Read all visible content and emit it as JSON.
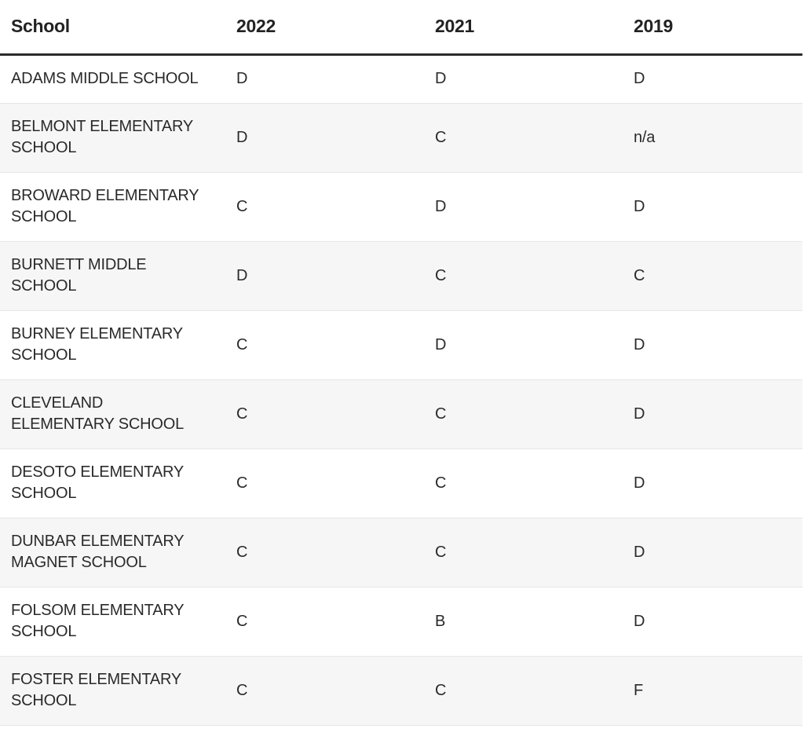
{
  "table": {
    "headers": {
      "school": "School",
      "y2022": "2022",
      "y2021": "2021",
      "y2019": "2019"
    },
    "rows": [
      {
        "school": "ADAMS MIDDLE SCHOOL",
        "y2022": "D",
        "y2021": "D",
        "y2019": "D"
      },
      {
        "school": "BELMONT ELEMENTARY SCHOOL",
        "y2022": "D",
        "y2021": "C",
        "y2019": "n/a"
      },
      {
        "school": "BROWARD ELEMENTARY SCHOOL",
        "y2022": "C",
        "y2021": "D",
        "y2019": "D"
      },
      {
        "school": "BURNETT MIDDLE SCHOOL",
        "y2022": "D",
        "y2021": "C",
        "y2019": "C"
      },
      {
        "school": "BURNEY ELEMENTARY SCHOOL",
        "y2022": "C",
        "y2021": "D",
        "y2019": "D"
      },
      {
        "school": "CLEVELAND ELEMENTARY SCHOOL",
        "y2022": "C",
        "y2021": "C",
        "y2019": "D"
      },
      {
        "school": "DESOTO ELEMENTARY SCHOOL",
        "y2022": "C",
        "y2021": "C",
        "y2019": "D"
      },
      {
        "school": "DUNBAR ELEMENTARY MAGNET SCHOOL",
        "y2022": "C",
        "y2021": "C",
        "y2019": "D"
      },
      {
        "school": "FOLSOM ELEMENTARY SCHOOL",
        "y2022": "C",
        "y2021": "B",
        "y2019": "D"
      },
      {
        "school": "FOSTER ELEMENTARY SCHOOL",
        "y2022": "C",
        "y2021": "C",
        "y2019": "F"
      }
    ]
  }
}
